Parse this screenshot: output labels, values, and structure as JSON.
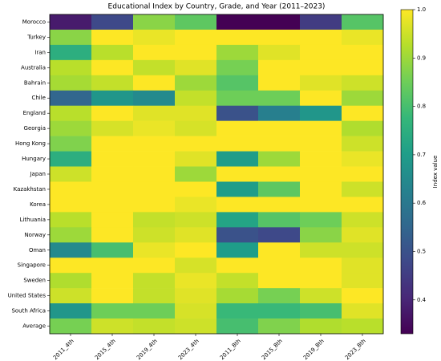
{
  "chart_data": {
    "type": "heatmap",
    "title": "Educational Index by Country, Grade, and Year (2011–2023)",
    "x": [
      "2011_4th",
      "2015_4th",
      "2019_4th",
      "2023_4th",
      "2011_8th",
      "2015_8th",
      "2019_8th",
      "2023_8th"
    ],
    "categories": [
      "Morocco",
      "Turkey",
      "Iran",
      "Australia",
      "Bahrain",
      "Chile",
      "England",
      "Georgia",
      "Hong Kong",
      "Hungary",
      "Japan",
      "Kazakhstan",
      "Korea",
      "Lithuania",
      "Norway",
      "Oman",
      "Singapore",
      "Sweden",
      "United States",
      "South Africa",
      "Average"
    ],
    "values": [
      [
        0.38,
        0.48,
        0.88,
        0.83,
        0.33,
        0.33,
        0.45,
        0.82
      ],
      [
        0.88,
        1.0,
        0.98,
        1.0,
        1.0,
        1.0,
        1.0,
        0.98
      ],
      [
        0.75,
        0.93,
        1.0,
        1.0,
        0.9,
        0.97,
        1.0,
        1.0
      ],
      [
        0.93,
        1.0,
        0.94,
        0.97,
        0.86,
        1.0,
        1.0,
        1.0
      ],
      [
        0.91,
        0.94,
        1.0,
        0.9,
        0.82,
        1.0,
        0.97,
        0.95
      ],
      [
        0.55,
        0.68,
        0.65,
        0.94,
        0.85,
        0.85,
        1.0,
        0.9
      ],
      [
        0.93,
        1.0,
        0.97,
        0.97,
        0.5,
        0.62,
        0.68,
        1.0
      ],
      [
        0.9,
        0.96,
        0.98,
        0.96,
        1.0,
        1.0,
        1.0,
        0.92
      ],
      [
        0.87,
        1.0,
        1.0,
        1.0,
        1.0,
        1.0,
        1.0,
        0.95
      ],
      [
        0.75,
        1.0,
        1.0,
        0.97,
        0.7,
        0.9,
        1.0,
        0.98
      ],
      [
        0.95,
        1.0,
        1.0,
        0.9,
        1.0,
        1.0,
        1.0,
        1.0
      ],
      [
        1.0,
        1.0,
        1.0,
        1.0,
        0.7,
        0.83,
        1.0,
        0.95
      ],
      [
        1.0,
        1.0,
        1.0,
        0.98,
        1.0,
        1.0,
        1.0,
        1.0
      ],
      [
        0.93,
        1.0,
        0.94,
        0.95,
        0.72,
        0.82,
        0.85,
        0.95
      ],
      [
        0.9,
        1.0,
        0.95,
        0.97,
        0.5,
        0.48,
        0.88,
        0.97
      ],
      [
        0.65,
        0.8,
        0.98,
        1.0,
        0.7,
        1.0,
        0.95,
        0.95
      ],
      [
        1.0,
        1.0,
        1.0,
        0.96,
        1.0,
        1.0,
        1.0,
        0.97
      ],
      [
        0.92,
        1.0,
        0.94,
        0.98,
        0.94,
        1.0,
        1.0,
        0.97
      ],
      [
        0.95,
        1.0,
        0.94,
        0.97,
        0.91,
        0.86,
        0.95,
        1.0
      ],
      [
        0.68,
        0.85,
        0.85,
        0.96,
        0.78,
        0.78,
        0.8,
        0.97
      ],
      [
        0.86,
        0.95,
        0.94,
        0.95,
        0.8,
        0.87,
        0.92,
        0.93
      ]
    ],
    "colorscale": [
      "#440154",
      "#482878",
      "#3e4989",
      "#31688e",
      "#26828e",
      "#1f9e89",
      "#35b779",
      "#6ece58",
      "#b5de2b",
      "#fde725"
    ],
    "zlim": [
      0.33,
      1.0
    ],
    "zticks": [
      0.4,
      0.5,
      0.6,
      0.7,
      0.8,
      0.9,
      {
        "value": 1.0,
        "label": "1.0"
      }
    ],
    "zlabel": "Index value"
  }
}
